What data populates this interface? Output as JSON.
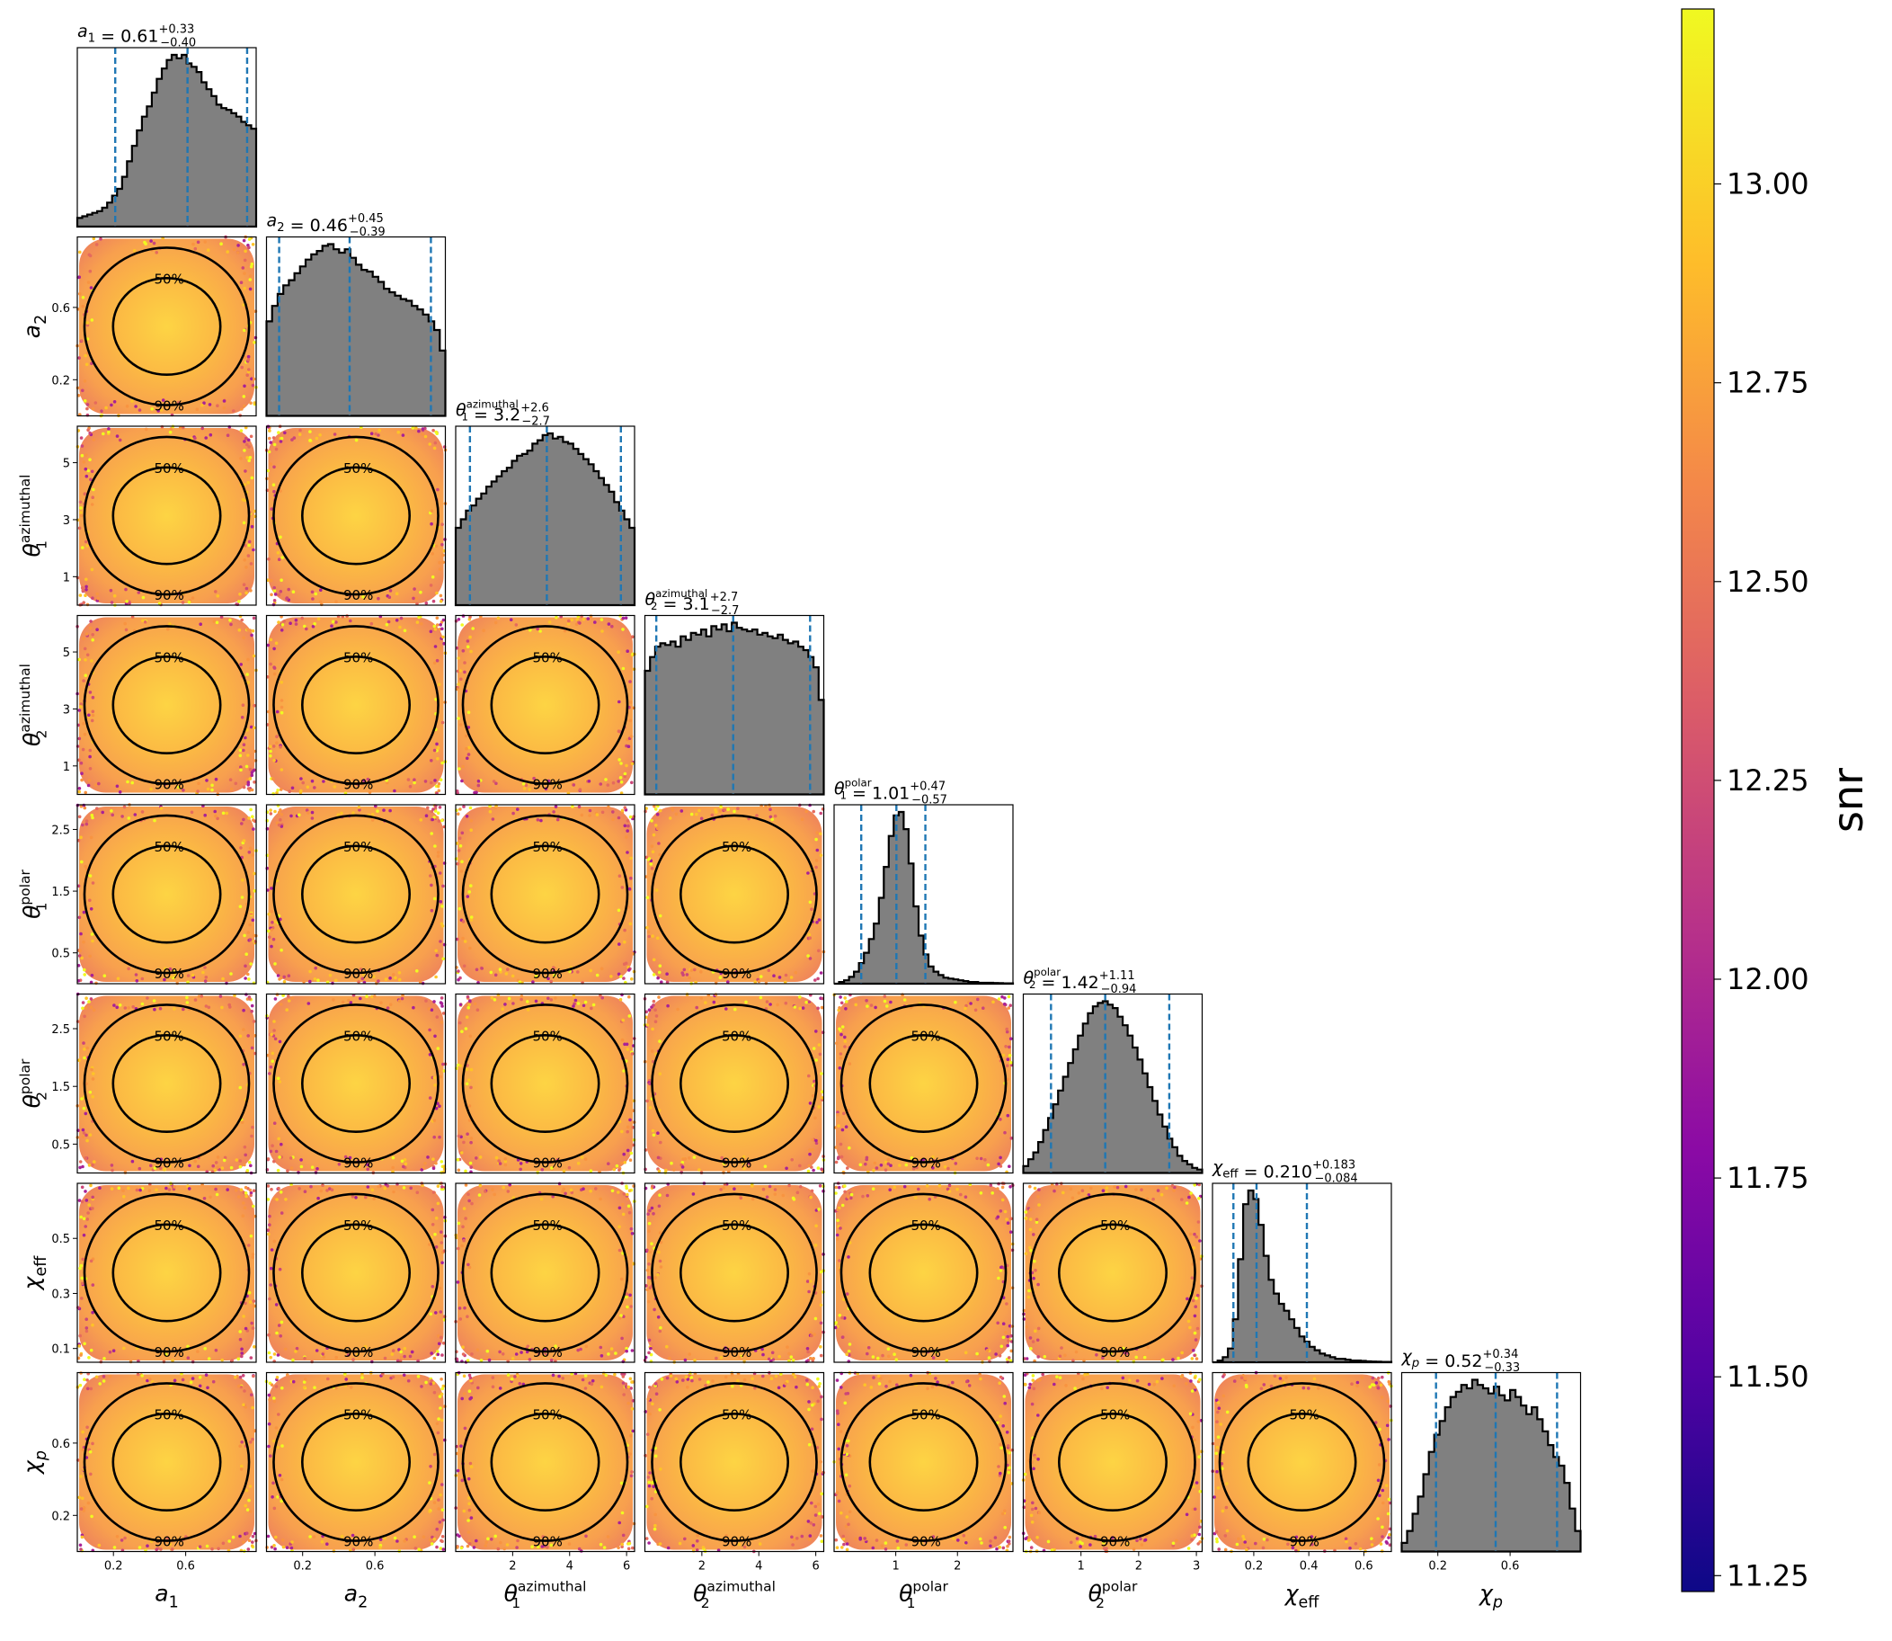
{
  "chart_data": {
    "type": "scatter",
    "kind": "corner-plot",
    "colorbar": {
      "label": "snr",
      "ticks": [
        "11.25",
        "11.50",
        "11.75",
        "12.00",
        "12.25",
        "12.50",
        "12.75",
        "13.00"
      ],
      "range": [
        11.23,
        13.22
      ],
      "colormap": "plasma",
      "colors": [
        "#0d0887",
        "#6a00a8",
        "#b12a90",
        "#e16462",
        "#fca636",
        "#f0f921"
      ]
    },
    "contour_levels": [
      "50%",
      "90%"
    ],
    "params": [
      {
        "id": "a1",
        "axis_label": "a_1",
        "title": {
          "name": "a_1",
          "median": "0.61",
          "plus": "+0.33",
          "minus": "−0.40"
        },
        "range": [
          0.0,
          0.99
        ],
        "ticks": [
          0.2,
          0.6
        ],
        "tick_labels": [
          "0.2",
          "0.6"
        ],
        "ci": [
          0.21,
          0.61,
          0.94
        ],
        "hist": [
          0.05,
          0.06,
          0.07,
          0.08,
          0.09,
          0.11,
          0.14,
          0.18,
          0.22,
          0.29,
          0.38,
          0.47,
          0.56,
          0.64,
          0.7,
          0.78,
          0.86,
          0.92,
          0.97,
          1.0,
          0.98,
          1.0,
          0.95,
          0.93,
          0.9,
          0.84,
          0.8,
          0.76,
          0.71,
          0.69,
          0.68,
          0.66,
          0.64,
          0.61,
          0.59,
          0.57
        ]
      },
      {
        "id": "a2",
        "axis_label": "a_2",
        "title": {
          "name": "a_2",
          "median": "0.46",
          "plus": "+0.45",
          "minus": "−0.39"
        },
        "range": [
          0.0,
          0.99
        ],
        "ticks": [
          0.2,
          0.6
        ],
        "tick_labels": [
          "0.2",
          "0.6"
        ],
        "ci": [
          0.07,
          0.46,
          0.91
        ],
        "hist": [
          0.55,
          0.64,
          0.71,
          0.76,
          0.79,
          0.83,
          0.87,
          0.91,
          0.94,
          0.96,
          0.99,
          1.0,
          0.97,
          0.95,
          0.97,
          0.92,
          0.88,
          0.85,
          0.84,
          0.81,
          0.78,
          0.74,
          0.72,
          0.7,
          0.68,
          0.67,
          0.64,
          0.62,
          0.59,
          0.55,
          0.5,
          0.38
        ]
      },
      {
        "id": "theta1_az",
        "axis_label": "theta1_az",
        "title": {
          "name": "theta1_az",
          "median": "3.2",
          "plus": "+2.6",
          "minus": "−2.7"
        },
        "range": [
          0.0,
          6.28
        ],
        "ticks": [
          1,
          3,
          5
        ],
        "x_ticks": [
          2,
          4,
          6
        ],
        "tick_labels": [
          "1",
          "3",
          "5"
        ],
        "x_tick_labels": [
          "2",
          "4",
          "6"
        ],
        "ci": [
          0.5,
          3.2,
          5.8
        ],
        "hist": [
          0.45,
          0.5,
          0.55,
          0.58,
          0.62,
          0.65,
          0.69,
          0.72,
          0.75,
          0.78,
          0.8,
          0.84,
          0.87,
          0.88,
          0.9,
          0.94,
          0.96,
          0.99,
          1.0,
          0.97,
          0.98,
          0.95,
          0.94,
          0.91,
          0.88,
          0.85,
          0.82,
          0.78,
          0.74,
          0.7,
          0.66,
          0.6,
          0.55,
          0.5,
          0.45
        ]
      },
      {
        "id": "theta2_az",
        "axis_label": "theta2_az",
        "title": {
          "name": "theta2_az",
          "median": "3.1",
          "plus": "+2.7",
          "minus": "−2.7"
        },
        "range": [
          0.0,
          6.28
        ],
        "ticks": [
          1,
          3,
          5
        ],
        "x_ticks": [
          2,
          4,
          6
        ],
        "tick_labels": [
          "1",
          "3",
          "5"
        ],
        "x_tick_labels": [
          "2",
          "4",
          "6"
        ],
        "ci": [
          0.4,
          3.1,
          5.8
        ],
        "hist": [
          0.72,
          0.8,
          0.86,
          0.88,
          0.87,
          0.89,
          0.86,
          0.92,
          0.9,
          0.94,
          0.93,
          0.96,
          0.92,
          0.98,
          0.96,
          0.99,
          0.95,
          1.0,
          0.97,
          0.96,
          0.95,
          0.96,
          0.93,
          0.94,
          0.92,
          0.91,
          0.93,
          0.9,
          0.88,
          0.89,
          0.86,
          0.84,
          0.8,
          0.74,
          0.55
        ]
      },
      {
        "id": "theta1_pol",
        "axis_label": "theta1_pol",
        "title": {
          "name": "theta1_pol",
          "median": "1.01",
          "plus": "+0.47",
          "minus": "−0.57"
        },
        "range": [
          0.0,
          2.9
        ],
        "ticks": [
          0.5,
          1.5,
          2.5
        ],
        "x_ticks": [
          1,
          2
        ],
        "tick_labels": [
          "0.5",
          "1.5",
          "2.5"
        ],
        "x_tick_labels": [
          "1",
          "2"
        ],
        "ci": [
          0.44,
          1.01,
          1.48
        ],
        "hist": [
          0.0,
          0.01,
          0.02,
          0.04,
          0.07,
          0.12,
          0.18,
          0.26,
          0.35,
          0.5,
          0.68,
          0.86,
          0.98,
          1.0,
          0.9,
          0.7,
          0.45,
          0.28,
          0.17,
          0.1,
          0.07,
          0.05,
          0.035,
          0.03,
          0.025,
          0.02,
          0.015,
          0.01,
          0.01,
          0.005,
          0.005,
          0.005,
          0.004,
          0.003,
          0.002,
          0.002
        ]
      },
      {
        "id": "theta2_pol",
        "axis_label": "theta2_pol",
        "title": {
          "name": "theta2_pol",
          "median": "1.42",
          "plus": "+1.11",
          "minus": "−0.94"
        },
        "range": [
          0.0,
          3.1
        ],
        "ticks": [
          0.5,
          1.5,
          2.5
        ],
        "x_ticks": [
          1,
          2,
          3
        ],
        "tick_labels": [
          "0.5",
          "1.5",
          "2.5"
        ],
        "x_tick_labels": [
          "1",
          "2",
          "3"
        ],
        "ci": [
          0.48,
          1.42,
          2.53
        ],
        "hist": [
          0.04,
          0.08,
          0.12,
          0.18,
          0.25,
          0.32,
          0.4,
          0.48,
          0.56,
          0.64,
          0.72,
          0.8,
          0.87,
          0.93,
          0.97,
          0.99,
          1.0,
          0.98,
          0.96,
          0.91,
          0.86,
          0.8,
          0.73,
          0.66,
          0.58,
          0.5,
          0.42,
          0.34,
          0.27,
          0.2,
          0.15,
          0.1,
          0.07,
          0.05,
          0.03,
          0.02
        ]
      },
      {
        "id": "chi_eff",
        "axis_label": "chi_eff",
        "title": {
          "name": "chi_eff",
          "median": "0.210",
          "plus": "+0.183",
          "minus": "−0.084"
        },
        "range": [
          0.05,
          0.7
        ],
        "ticks": [
          0.1,
          0.3,
          0.5
        ],
        "x_ticks": [
          0.2,
          0.4,
          0.6
        ],
        "tick_labels": [
          "0.1",
          "0.3",
          "0.5"
        ],
        "x_tick_labels": [
          "0.2",
          "0.4",
          "0.6"
        ],
        "ci": [
          0.126,
          0.21,
          0.393
        ],
        "hist": [
          0.0,
          0.01,
          0.03,
          0.08,
          0.25,
          0.6,
          0.92,
          1.0,
          0.95,
          0.8,
          0.62,
          0.48,
          0.4,
          0.34,
          0.3,
          0.25,
          0.2,
          0.15,
          0.12,
          0.09,
          0.07,
          0.05,
          0.04,
          0.03,
          0.02,
          0.02,
          0.015,
          0.01,
          0.01,
          0.008,
          0.005,
          0.004,
          0.003,
          0.002,
          0.002
        ]
      },
      {
        "id": "chi_p",
        "axis_label": "chi_p",
        "title": {
          "name": "chi_p",
          "median": "0.52",
          "plus": "+0.34",
          "minus": "−0.33"
        },
        "range": [
          0.0,
          0.99
        ],
        "ticks": [
          0.2,
          0.6
        ],
        "tick_labels": [
          "0.2",
          "0.6"
        ],
        "ci": [
          0.19,
          0.52,
          0.86
        ],
        "hist": [
          0.05,
          0.12,
          0.22,
          0.32,
          0.45,
          0.58,
          0.68,
          0.76,
          0.84,
          0.9,
          0.93,
          0.97,
          0.95,
          1.0,
          0.97,
          0.95,
          0.92,
          0.96,
          0.91,
          0.88,
          0.94,
          0.9,
          0.85,
          0.8,
          0.84,
          0.77,
          0.7,
          0.62,
          0.55,
          0.5,
          0.4,
          0.25,
          0.12
        ]
      }
    ]
  }
}
